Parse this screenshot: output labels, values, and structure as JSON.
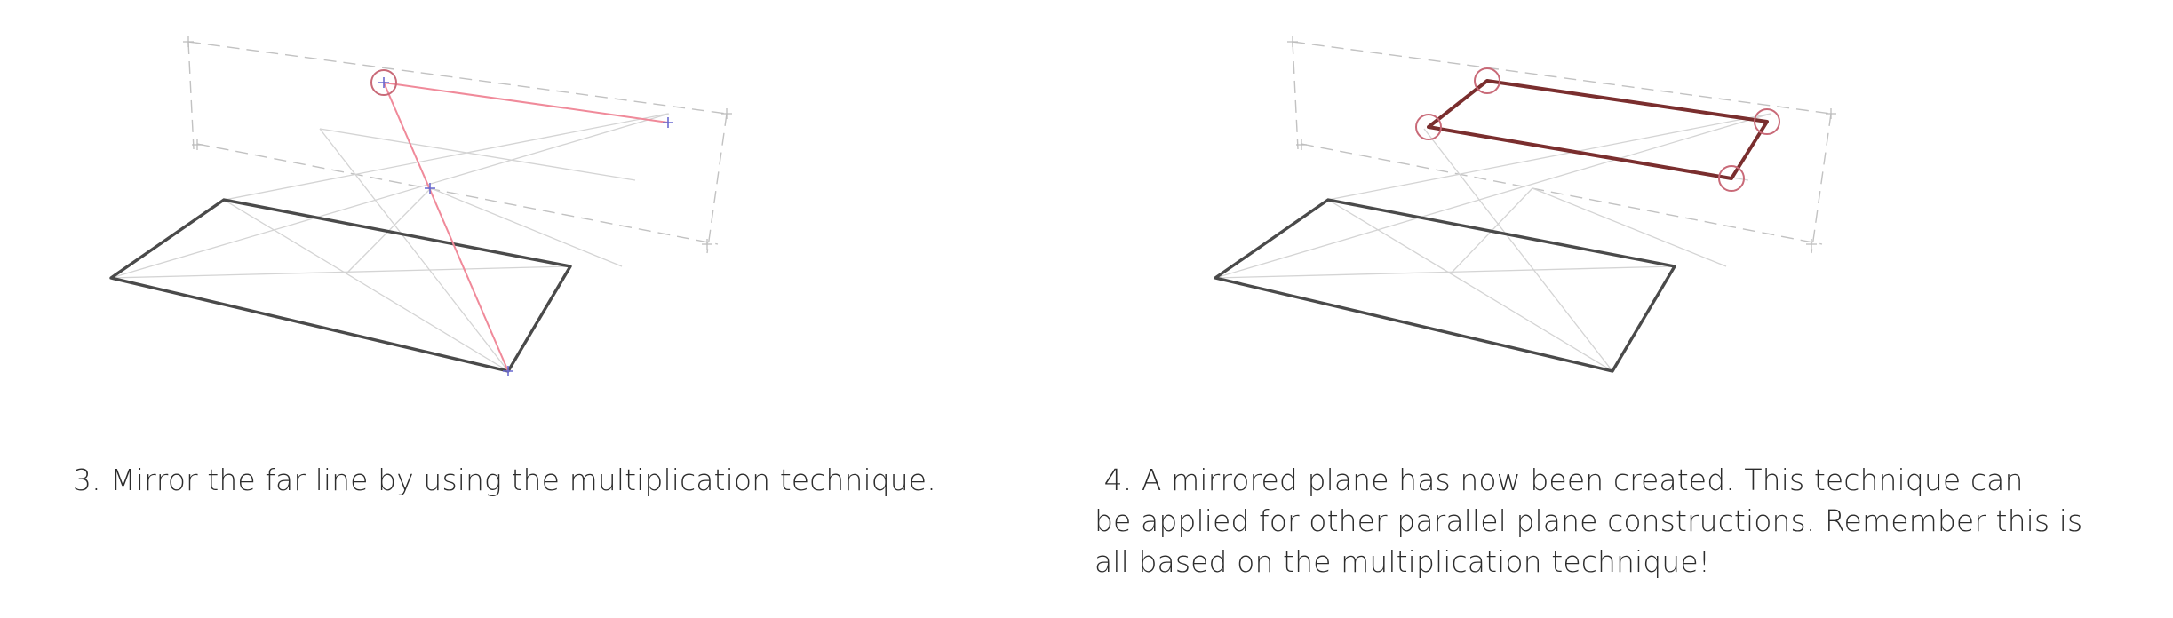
{
  "steps": [
    {
      "number": "3.",
      "caption": "Mirror the far line by using the multiplication technique."
    },
    {
      "number": "4.",
      "caption_lines": [
        "A mirrored plane has now been created. This technique can",
        "be applied for other parallel plane constructions. Remember this is",
        "all based on the multiplication technique!"
      ]
    }
  ],
  "colors": {
    "plane_stroke": "#4a4a4a",
    "construction_stroke": "#c8c8c8",
    "guide_dash": "#b8b8b8",
    "mirror_line": "#f08a9a",
    "highlight_circle": "#c96a78",
    "mirrored_plane": "#7a2e2e",
    "point_marker": "#6a6ad0",
    "text": "#2c2c2c"
  },
  "icons": {
    "marker": "cross-point-marker",
    "highlight": "circle-highlight"
  }
}
